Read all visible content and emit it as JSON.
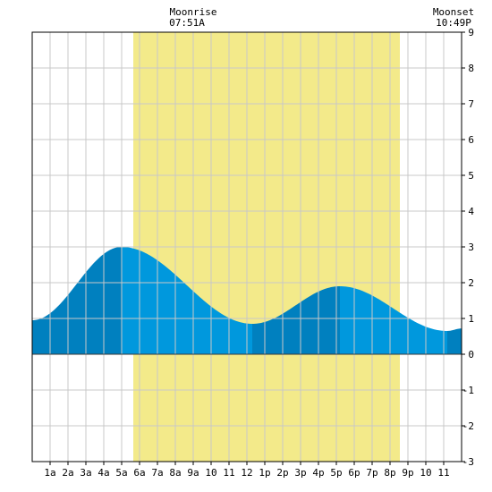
{
  "header": {
    "moonrise_label": "Moonrise",
    "moonrise_time": "07:51A",
    "moonset_label": "Moonset",
    "moonset_time": "10:49P"
  },
  "colors": {
    "daylight": "#f3ea8a",
    "tide_light": "#0098dd",
    "tide_dark": "#0080bf",
    "grid": "#c8c8c8",
    "axis": "#000000"
  },
  "chart_data": {
    "type": "area",
    "xlabel": "",
    "ylabel": "",
    "xlim": [
      0,
      24
    ],
    "ylim": [
      -3,
      9
    ],
    "grid": true,
    "x_tick_labels": [
      "1a",
      "2a",
      "3a",
      "4a",
      "5a",
      "6a",
      "7a",
      "8a",
      "9a",
      "10",
      "11",
      "12",
      "1p",
      "2p",
      "3p",
      "4p",
      "5p",
      "6p",
      "7p",
      "8p",
      "9p",
      "10",
      "11"
    ],
    "y_tick_labels": [
      "-3",
      "-2",
      "-1",
      "0",
      "1",
      "2",
      "3",
      "4",
      "5",
      "6",
      "7",
      "8",
      "9"
    ],
    "daylight_hours": [
      5.65,
      20.55
    ],
    "tide_extremes": [
      {
        "hour": 0.0,
        "height": 0.95
      },
      {
        "hour": 5.0,
        "height": 3.0
      },
      {
        "hour": 12.3,
        "height": 0.85
      },
      {
        "hour": 17.2,
        "height": 1.9
      },
      {
        "hour": 23.2,
        "height": 0.65
      },
      {
        "hour": 24.0,
        "height": 0.72
      }
    ],
    "shade_boundaries": [
      5.0,
      12.3,
      17.2,
      23.2
    ]
  }
}
